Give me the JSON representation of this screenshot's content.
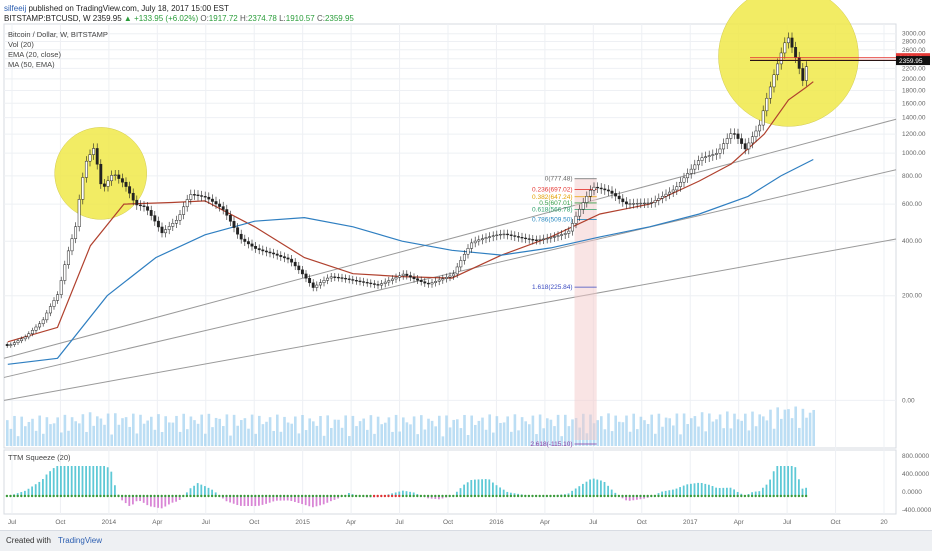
{
  "header": {
    "user": "silfeeij",
    "published": "published on TradingView.com, July 18, 2017 15:00 EST",
    "symbol": "BITSTAMP:BTCUSD, W",
    "last": "2359.95",
    "change": "▲ +133.95 (+6.02%)",
    "o_label": "O:",
    "o": "1917.72",
    "h_label": "H:",
    "h": "2374.78",
    "l_label": "L:",
    "l": "1910.57",
    "c_label": "C:",
    "c": "2359.95"
  },
  "legend": {
    "title": "Bitcoin / Dollar, W, BITSTAMP",
    "vol": "Vol (20)",
    "ema": "EMA (20, close)",
    "ma": "MA (50, EMA)",
    "ttm": "TTM Squeeze (20)"
  },
  "footer": {
    "created": "Created with",
    "brand": "TradingView"
  },
  "colors": {
    "ema": "#b0412e",
    "ma": "#2f7fc1",
    "trend": "#9a9a9a",
    "volume": "#8fc8ec",
    "circle": "#f0e94a",
    "squeeze_pos": "#5ec9d6",
    "squeeze_neg": "#d986d6",
    "dot_green": "#3a9a3a",
    "dot_red": "#d33"
  },
  "chart_data": {
    "type": "candlestick",
    "title": "Bitcoin / Dollar, W, BITSTAMP",
    "y_scale": "log",
    "ylim": [
      -40,
      3100
    ],
    "y_ticks": [
      "3000.00",
      "2800.00",
      "2600.00",
      "2400.00",
      "2200.00",
      "2000.00",
      "1800.00",
      "1600.00",
      "1400.00",
      "1200.00",
      "1000.00",
      "800.00",
      "600.00",
      "400.00",
      "200.00",
      "0.00"
    ],
    "x_ticks": [
      "Jul",
      "Oct",
      "2014",
      "Apr",
      "Jul",
      "Oct",
      "2015",
      "Apr",
      "Jul",
      "Oct",
      "2016",
      "Apr",
      "Jul",
      "Oct",
      "2017",
      "Apr",
      "Jul",
      "Oct",
      "20"
    ],
    "x_range": [
      "2013-06-24",
      "2017-12-31"
    ],
    "price_labels": [
      {
        "value": 2422.19,
        "text": "2422.19",
        "color": "#e53935"
      },
      {
        "value": 2368.29,
        "text": "2368.29",
        "color": "#d32f2f"
      },
      {
        "value": 2359.95,
        "text": "2359.95",
        "color": "#111111"
      }
    ],
    "fibonacci": [
      {
        "level": "0",
        "price": 777.48,
        "text": "0(777.48)",
        "color": "#666666"
      },
      {
        "level": "0.236",
        "price": 697.02,
        "text": "0.236(697.02)",
        "color": "#e53935"
      },
      {
        "level": "0.382",
        "price": 647.24,
        "text": "0.382(647.24)",
        "color": "#e5a000"
      },
      {
        "level": "0.5",
        "price": 607.01,
        "text": "0.5(607.01)",
        "color": "#3aa04a"
      },
      {
        "level": "0.618",
        "price": 566.78,
        "text": "0.618(566.78)",
        "color": "#2ea06a"
      },
      {
        "level": "0.786",
        "price": 509.5,
        "text": "0.786(509.50)",
        "color": "#2a8ac0"
      },
      {
        "level": "1.618",
        "price": 225.84,
        "text": "1.618(225.84)",
        "color": "#3a4ac0"
      },
      {
        "level": "2.618",
        "price": -115.1,
        "text": "2.618(-115.10)",
        "color": "#8a3aa0"
      }
    ],
    "series": [
      {
        "name": "Bitcoin / Dollar, W, BITSTAMP",
        "kind": "price",
        "points": [
          [
            "2013-07-01",
            85
          ],
          [
            "2013-08-01",
            100
          ],
          [
            "2013-09-01",
            130
          ],
          [
            "2013-10-01",
            200
          ],
          [
            "2013-11-01",
            450
          ],
          [
            "2013-11-20",
            900
          ],
          [
            "2013-12-05",
            1050
          ],
          [
            "2013-12-20",
            700
          ],
          [
            "2014-01-10",
            850
          ],
          [
            "2014-02-01",
            760
          ],
          [
            "2014-02-20",
            620
          ],
          [
            "2014-03-10",
            600
          ],
          [
            "2014-04-10",
            440
          ],
          [
            "2014-05-10",
            500
          ],
          [
            "2014-06-01",
            640
          ],
          [
            "2014-07-01",
            620
          ],
          [
            "2014-08-01",
            560
          ],
          [
            "2014-09-01",
            420
          ],
          [
            "2014-10-01",
            380
          ],
          [
            "2014-11-01",
            360
          ],
          [
            "2014-12-01",
            330
          ],
          [
            "2015-01-15",
            220
          ],
          [
            "2015-02-15",
            250
          ],
          [
            "2015-04-01",
            240
          ],
          [
            "2015-05-15",
            235
          ],
          [
            "2015-07-01",
            280
          ],
          [
            "2015-08-15",
            240
          ],
          [
            "2015-10-01",
            260
          ],
          [
            "2015-11-05",
            380
          ],
          [
            "2016-01-01",
            430
          ],
          [
            "2016-03-01",
            420
          ],
          [
            "2016-05-01",
            450
          ],
          [
            "2016-06-15",
            700
          ],
          [
            "2016-07-15",
            660
          ],
          [
            "2016-08-15",
            580
          ],
          [
            "2016-10-01",
            610
          ],
          [
            "2016-11-15",
            730
          ],
          [
            "2017-01-01",
            980
          ],
          [
            "2017-02-01",
            1000
          ],
          [
            "2017-03-01",
            1200
          ],
          [
            "2017-03-25",
            1000
          ],
          [
            "2017-04-20",
            1250
          ],
          [
            "2017-05-10",
            1800
          ],
          [
            "2017-05-25",
            2300
          ],
          [
            "2017-06-11",
            2950
          ],
          [
            "2017-06-25",
            2500
          ],
          [
            "2017-07-10",
            2000
          ],
          [
            "2017-07-17",
            2360
          ]
        ]
      },
      {
        "name": "EMA (20, close)",
        "kind": "ema",
        "points": [
          [
            "2013-07-01",
            90
          ],
          [
            "2013-10-01",
            120
          ],
          [
            "2013-12-01",
            380
          ],
          [
            "2014-02-01",
            600
          ],
          [
            "2014-05-01",
            610
          ],
          [
            "2014-07-01",
            620
          ],
          [
            "2014-10-01",
            470
          ],
          [
            "2015-01-01",
            330
          ],
          [
            "2015-04-01",
            270
          ],
          [
            "2015-07-01",
            260
          ],
          [
            "2015-10-01",
            255
          ],
          [
            "2016-01-01",
            340
          ],
          [
            "2016-04-01",
            420
          ],
          [
            "2016-07-01",
            540
          ],
          [
            "2016-10-01",
            600
          ],
          [
            "2017-01-01",
            760
          ],
          [
            "2017-03-01",
            900
          ],
          [
            "2017-05-01",
            1200
          ],
          [
            "2017-06-15",
            1650
          ],
          [
            "2017-07-17",
            1850
          ],
          [
            "2017-07-31",
            1950
          ]
        ]
      },
      {
        "name": "MA (50, EMA)",
        "kind": "ma",
        "points": [
          [
            "2013-07-01",
            50
          ],
          [
            "2013-10-01",
            60
          ],
          [
            "2014-01-01",
            200
          ],
          [
            "2014-04-01",
            330
          ],
          [
            "2014-07-01",
            430
          ],
          [
            "2014-10-01",
            500
          ],
          [
            "2015-01-01",
            520
          ],
          [
            "2015-04-01",
            470
          ],
          [
            "2015-07-01",
            400
          ],
          [
            "2015-10-01",
            360
          ],
          [
            "2016-01-01",
            340
          ],
          [
            "2016-04-01",
            370
          ],
          [
            "2016-07-01",
            420
          ],
          [
            "2016-10-01",
            470
          ],
          [
            "2017-01-01",
            540
          ],
          [
            "2017-04-01",
            650
          ],
          [
            "2017-06-01",
            800
          ],
          [
            "2017-07-31",
            940
          ]
        ]
      }
    ],
    "trendlines": [
      {
        "from": [
          "2013-06-24",
          0
        ],
        "to": [
          "2017-12-31",
          410
        ]
      },
      {
        "from": [
          "2013-06-24",
          30
        ],
        "to": [
          "2017-12-31",
          850
        ]
      },
      {
        "from": [
          "2013-06-24",
          60
        ],
        "to": [
          "2017-12-31",
          1380
        ]
      }
    ],
    "highlights": [
      {
        "center": [
          "2013-12-20",
          820
        ],
        "label": ""
      },
      {
        "center": [
          "2017-06-15",
          2450
        ],
        "label": ""
      }
    ]
  }
}
